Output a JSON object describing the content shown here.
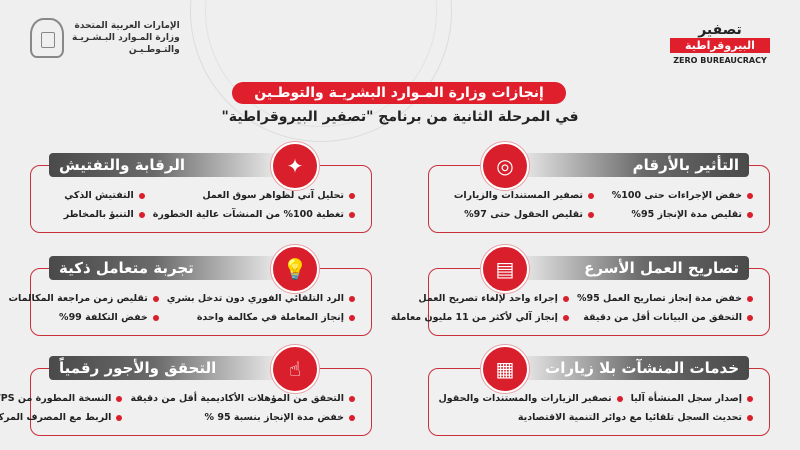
{
  "header": {
    "government": [
      "الإمارات العربية المتحدة",
      "وزارة المـوارد البـشـريـة",
      "والتـوطـيـن"
    ],
    "logo": {
      "ar_line1": "تصفير",
      "ar_line2": "البيروقراطية",
      "en": "ZERO BUREAUCRACY"
    },
    "title": "إنجازات وزارة المـوارد البشريـة والتوطـين",
    "subtitle": "في المرحلة الثانية من برنامج \"تصفير البيروقراطية\""
  },
  "colors": {
    "accent": "#e01f2d",
    "header_bar": "#4a4a4a",
    "background": "#efefef"
  },
  "cards": [
    {
      "title": "التأثير بالأرقام",
      "icon": "target-icon",
      "items": [
        "خفض الإجراءات حتى 100%",
        "تصفير المستندات والزيارات",
        "تقليص مدة الإنجاز 95%",
        "تقليص الحقول حتى 97%"
      ]
    },
    {
      "title": "الرقابة والتفتيش",
      "icon": "sparkle-icon",
      "items": [
        "تحليل آني لظواهر سوق العمل",
        "التفتيش الذكي",
        "تغطية 100% من المنشآت عالية الخطورة",
        "التنبؤ بالمخاطر"
      ]
    },
    {
      "title": "تصاريح العمل الأسرع",
      "icon": "document-icon",
      "items": [
        "خفض مدة إنجاز تصاريح العمل 95%",
        "إجراء واحد لإلغاء تصريح العمل",
        "التحقق من البيانات أقل من دقيقة",
        "إنجاز آلي لأكثر من 11 مليون معاملة"
      ]
    },
    {
      "title": "تجربة متعامل ذكية",
      "icon": "lightbulb-icon",
      "items": [
        "الرد التلقائي الفوري دون تدخل بشري",
        "تقليص زمن مراجعة المكالمات",
        "إنجاز المعاملة في مكالمة واحدة",
        "خفض التكلفة 99%"
      ]
    },
    {
      "title": "خدمات المنشآت بلا زيارات",
      "icon": "building-icon",
      "items": [
        "إصدار سجل المنشأة آليا",
        "تصفير الزيارات والمستندات والحقول",
        "تحديث السجل تلقائيا مع دوائر التنمية الاقتصادية"
      ]
    },
    {
      "title": "التحقق والأجور رقمياً",
      "icon": "network-hand-icon",
      "items": [
        "التحقق من المؤهلات الأكاديمية أقل من دقيقة",
        "النسخة المطورة من WPS",
        "خفض مدة الإنجاز بنسبة 95 %",
        "الربط مع المصرف المركزي"
      ]
    }
  ]
}
